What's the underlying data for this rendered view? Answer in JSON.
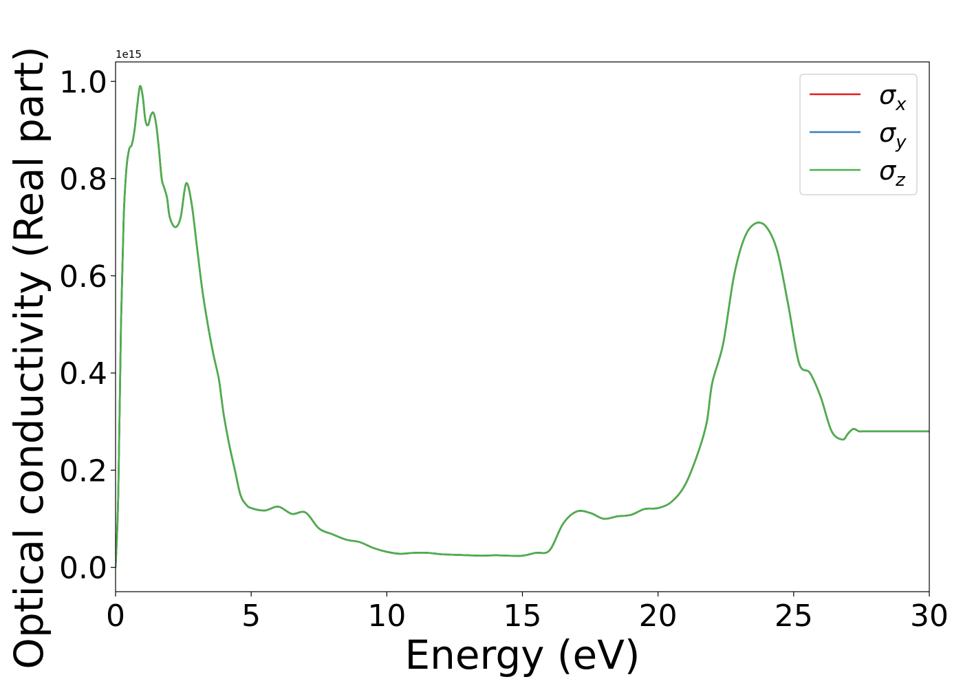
{
  "chart_data": {
    "type": "line",
    "title": "",
    "xlabel": "Energy (eV)",
    "ylabel": "Optical conductivity (Real part)",
    "offset_text": "1e15",
    "xlim": [
      0,
      30
    ],
    "ylim": [
      -0.05,
      1.04
    ],
    "xticks": [
      0,
      5,
      10,
      15,
      20,
      25,
      30
    ],
    "xtick_labels": [
      "0",
      "5",
      "10",
      "15",
      "20",
      "25",
      "30"
    ],
    "yticks": [
      0.0,
      0.2,
      0.4,
      0.6,
      0.8,
      1.0
    ],
    "ytick_labels": [
      "0.0",
      "0.2",
      "0.4",
      "0.6",
      "0.8",
      "1.0"
    ],
    "grid": false,
    "legend_position": "top-right",
    "x": [
      0,
      0.1,
      0.2,
      0.3,
      0.4,
      0.5,
      0.6,
      0.7,
      0.8,
      0.9,
      1.0,
      1.1,
      1.2,
      1.3,
      1.4,
      1.5,
      1.6,
      1.7,
      1.8,
      1.9,
      2.0,
      2.2,
      2.4,
      2.6,
      2.8,
      3.0,
      3.2,
      3.4,
      3.6,
      3.8,
      3.9,
      4.0,
      4.2,
      4.4,
      4.6,
      4.8,
      5.0,
      5.5,
      6.0,
      6.5,
      7.0,
      7.5,
      8.0,
      8.5,
      9.0,
      9.5,
      10.0,
      10.5,
      11.0,
      11.5,
      12.0,
      12.5,
      13.0,
      13.5,
      14.0,
      14.5,
      15.0,
      15.5,
      16.0,
      16.5,
      17.0,
      17.5,
      18.0,
      18.5,
      19.0,
      19.5,
      20.0,
      20.5,
      21.0,
      21.5,
      21.8,
      22.0,
      22.4,
      22.8,
      23.2,
      23.6,
      24.0,
      24.4,
      24.8,
      25.2,
      25.6,
      26.0,
      26.4,
      26.8,
      27.0,
      27.2,
      27.4,
      27.5,
      27.6,
      27.8,
      28.0,
      28.2,
      28.4,
      28.6,
      28.8,
      29.0,
      29.2,
      29.4,
      29.6,
      29.8,
      30.0
    ],
    "series": [
      {
        "name": "σx",
        "color": "#e41a1c",
        "values": [
          0.0,
          0.15,
          0.5,
          0.72,
          0.82,
          0.86,
          0.87,
          0.9,
          0.95,
          0.99,
          0.97,
          0.92,
          0.91,
          0.93,
          0.935,
          0.91,
          0.86,
          0.8,
          0.78,
          0.76,
          0.72,
          0.7,
          0.72,
          0.79,
          0.75,
          0.66,
          0.57,
          0.5,
          0.44,
          0.39,
          0.35,
          0.31,
          0.25,
          0.2,
          0.15,
          0.13,
          0.122,
          0.117,
          0.125,
          0.11,
          0.113,
          0.08,
          0.068,
          0.057,
          0.052,
          0.04,
          0.032,
          0.028,
          0.03,
          0.03,
          0.027,
          0.026,
          0.025,
          0.024,
          0.025,
          0.024,
          0.024,
          0.03,
          0.035,
          0.09,
          0.115,
          0.112,
          0.1,
          0.105,
          0.108,
          0.12,
          0.122,
          0.135,
          0.17,
          0.24,
          0.3,
          0.38,
          0.46,
          0.6,
          0.68,
          0.708,
          0.7,
          0.65,
          0.54,
          0.42,
          0.4,
          0.35,
          0.28,
          0.263,
          0.275,
          0.285,
          0.28,
          0.28,
          0.28,
          0.28,
          0.28,
          0.28,
          0.28,
          0.28,
          0.28,
          0.28,
          0.28,
          0.28,
          0.28,
          0.28,
          0.28
        ]
      },
      {
        "name": "σy",
        "color": "#377eb8",
        "values": [
          0.0,
          0.15,
          0.5,
          0.72,
          0.82,
          0.86,
          0.87,
          0.9,
          0.95,
          0.99,
          0.97,
          0.92,
          0.91,
          0.93,
          0.935,
          0.91,
          0.86,
          0.8,
          0.78,
          0.76,
          0.72,
          0.7,
          0.72,
          0.79,
          0.75,
          0.66,
          0.57,
          0.5,
          0.44,
          0.39,
          0.35,
          0.31,
          0.25,
          0.2,
          0.15,
          0.13,
          0.122,
          0.117,
          0.125,
          0.11,
          0.113,
          0.08,
          0.068,
          0.057,
          0.052,
          0.04,
          0.032,
          0.028,
          0.03,
          0.03,
          0.027,
          0.026,
          0.025,
          0.024,
          0.025,
          0.024,
          0.024,
          0.03,
          0.035,
          0.09,
          0.115,
          0.112,
          0.1,
          0.105,
          0.108,
          0.12,
          0.122,
          0.135,
          0.17,
          0.24,
          0.3,
          0.38,
          0.46,
          0.6,
          0.68,
          0.708,
          0.7,
          0.65,
          0.54,
          0.42,
          0.4,
          0.35,
          0.28,
          0.263,
          0.275,
          0.285,
          0.28,
          0.28,
          0.28,
          0.28,
          0.28,
          0.28,
          0.28,
          0.28,
          0.28,
          0.28,
          0.28,
          0.28,
          0.28,
          0.28,
          0.28
        ]
      },
      {
        "name": "σz",
        "color": "#4daf4a",
        "values": [
          0.0,
          0.15,
          0.5,
          0.72,
          0.82,
          0.86,
          0.87,
          0.9,
          0.95,
          0.99,
          0.97,
          0.92,
          0.91,
          0.93,
          0.935,
          0.91,
          0.86,
          0.8,
          0.78,
          0.76,
          0.72,
          0.7,
          0.72,
          0.79,
          0.75,
          0.66,
          0.57,
          0.5,
          0.44,
          0.39,
          0.35,
          0.31,
          0.25,
          0.2,
          0.15,
          0.13,
          0.122,
          0.117,
          0.125,
          0.11,
          0.113,
          0.08,
          0.068,
          0.057,
          0.052,
          0.04,
          0.032,
          0.028,
          0.03,
          0.03,
          0.027,
          0.026,
          0.025,
          0.024,
          0.025,
          0.024,
          0.024,
          0.03,
          0.035,
          0.09,
          0.115,
          0.112,
          0.1,
          0.105,
          0.108,
          0.12,
          0.122,
          0.135,
          0.17,
          0.24,
          0.3,
          0.38,
          0.46,
          0.6,
          0.68,
          0.708,
          0.7,
          0.65,
          0.54,
          0.42,
          0.4,
          0.35,
          0.28,
          0.263,
          0.275,
          0.285,
          0.28,
          0.28,
          0.28,
          0.28,
          0.28,
          0.28,
          0.28,
          0.28,
          0.28,
          0.28,
          0.28,
          0.28,
          0.28,
          0.28,
          0.28
        ]
      }
    ]
  }
}
